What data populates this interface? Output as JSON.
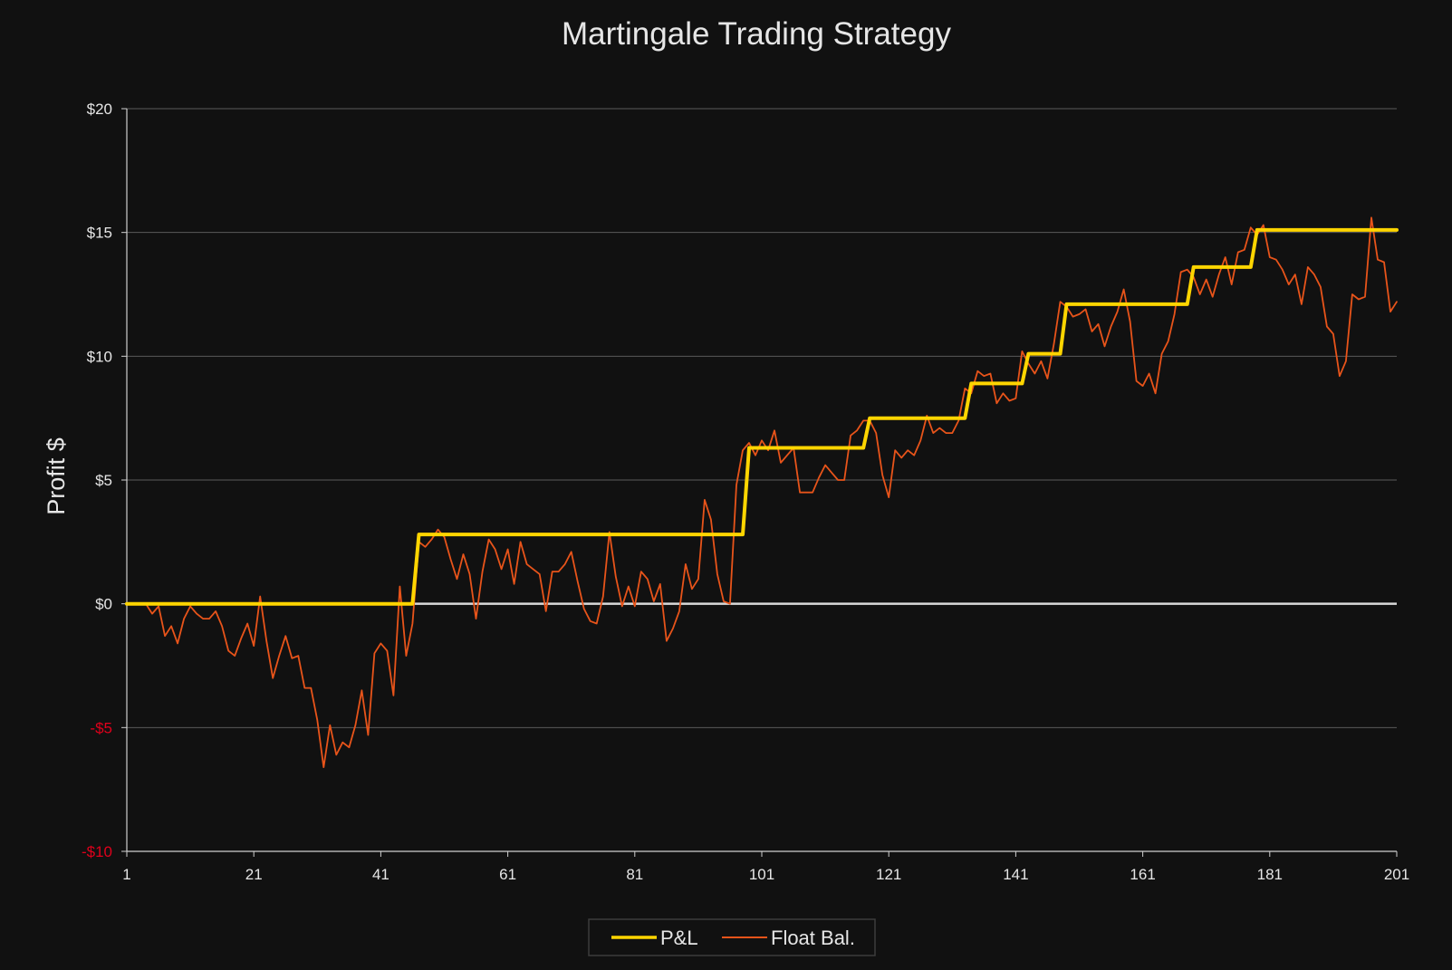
{
  "colors": {
    "background": "#111111",
    "grid": "#5a5a5a",
    "zero_line": "#d9d9d9",
    "axis": "#cfcfcf",
    "text": "#e6e6e6",
    "negative_tick": "#e0001b",
    "pnl": "#ffd500",
    "float": "#e8541a",
    "legend_border": "#3c3c3c"
  },
  "chart_data": {
    "type": "line",
    "title": "Martingale Trading Strategy",
    "ylabel": "Profit $",
    "xlabel": "",
    "xlim": [
      1,
      201
    ],
    "ylim": [
      -10,
      20
    ],
    "x_ticks": [
      1,
      21,
      41,
      61,
      81,
      101,
      121,
      141,
      161,
      181,
      201
    ],
    "y_ticks": [
      {
        "value": 20,
        "label": "$20"
      },
      {
        "value": 15,
        "label": "$15"
      },
      {
        "value": 10,
        "label": "$10"
      },
      {
        "value": 5,
        "label": "$5"
      },
      {
        "value": 0,
        "label": "$0"
      },
      {
        "value": -5,
        "label": "-$5"
      },
      {
        "value": -10,
        "label": "-$10"
      }
    ],
    "grid": true,
    "legend_position": "bottom",
    "series": [
      {
        "name": "P&L",
        "color": "#ffd500",
        "points": [
          [
            1,
            0
          ],
          [
            46,
            0
          ],
          [
            47,
            2.8
          ],
          [
            98,
            2.8
          ],
          [
            99,
            6.3
          ],
          [
            117,
            6.3
          ],
          [
            118,
            7.5
          ],
          [
            133,
            7.5
          ],
          [
            134,
            8.9
          ],
          [
            142,
            8.9
          ],
          [
            143,
            10.1
          ],
          [
            148,
            10.1
          ],
          [
            149,
            12.1
          ],
          [
            168,
            12.1
          ],
          [
            169,
            13.6
          ],
          [
            178,
            13.6
          ],
          [
            179,
            15.1
          ],
          [
            201,
            15.1
          ]
        ]
      },
      {
        "name": "Float Bal.",
        "color": "#e8541a",
        "points": [
          [
            1,
            0
          ],
          [
            4,
            0
          ],
          [
            5,
            -0.4
          ],
          [
            6,
            -0.1
          ],
          [
            7,
            -1.3
          ],
          [
            8,
            -0.9
          ],
          [
            9,
            -1.6
          ],
          [
            10,
            -0.6
          ],
          [
            11,
            -0.1
          ],
          [
            12,
            -0.4
          ],
          [
            13,
            -0.6
          ],
          [
            14,
            -0.6
          ],
          [
            15,
            -0.3
          ],
          [
            16,
            -0.9
          ],
          [
            17,
            -1.9
          ],
          [
            18,
            -2.1
          ],
          [
            19,
            -1.4
          ],
          [
            20,
            -0.8
          ],
          [
            21,
            -1.7
          ],
          [
            22,
            0.3
          ],
          [
            23,
            -1.5
          ],
          [
            24,
            -3.0
          ],
          [
            25,
            -2.1
          ],
          [
            26,
            -1.3
          ],
          [
            27,
            -2.2
          ],
          [
            28,
            -2.1
          ],
          [
            29,
            -3.4
          ],
          [
            30,
            -3.4
          ],
          [
            31,
            -4.7
          ],
          [
            32,
            -6.6
          ],
          [
            33,
            -4.9
          ],
          [
            34,
            -6.1
          ],
          [
            35,
            -5.6
          ],
          [
            36,
            -5.8
          ],
          [
            37,
            -4.9
          ],
          [
            38,
            -3.5
          ],
          [
            39,
            -5.3
          ],
          [
            40,
            -2.0
          ],
          [
            41,
            -1.6
          ],
          [
            42,
            -1.9
          ],
          [
            43,
            -3.7
          ],
          [
            44,
            0.7
          ],
          [
            45,
            -2.1
          ],
          [
            46,
            -0.8
          ],
          [
            47,
            2.5
          ],
          [
            48,
            2.3
          ],
          [
            49,
            2.6
          ],
          [
            50,
            3.0
          ],
          [
            51,
            2.7
          ],
          [
            52,
            1.8
          ],
          [
            53,
            1.0
          ],
          [
            54,
            2.0
          ],
          [
            55,
            1.2
          ],
          [
            56,
            -0.6
          ],
          [
            57,
            1.3
          ],
          [
            58,
            2.6
          ],
          [
            59,
            2.2
          ],
          [
            60,
            1.4
          ],
          [
            61,
            2.2
          ],
          [
            62,
            0.8
          ],
          [
            63,
            2.5
          ],
          [
            64,
            1.6
          ],
          [
            65,
            1.4
          ],
          [
            66,
            1.2
          ],
          [
            67,
            -0.3
          ],
          [
            68,
            1.3
          ],
          [
            69,
            1.3
          ],
          [
            70,
            1.6
          ],
          [
            71,
            2.1
          ],
          [
            72,
            0.9
          ],
          [
            73,
            -0.2
          ],
          [
            74,
            -0.7
          ],
          [
            75,
            -0.8
          ],
          [
            76,
            0.3
          ],
          [
            77,
            2.9
          ],
          [
            78,
            1.1
          ],
          [
            79,
            -0.1
          ],
          [
            80,
            0.7
          ],
          [
            81,
            -0.1
          ],
          [
            82,
            1.3
          ],
          [
            83,
            1.0
          ],
          [
            84,
            0.1
          ],
          [
            85,
            0.8
          ],
          [
            86,
            -1.5
          ],
          [
            87,
            -1.0
          ],
          [
            88,
            -0.3
          ],
          [
            89,
            1.6
          ],
          [
            90,
            0.6
          ],
          [
            91,
            1.0
          ],
          [
            92,
            4.2
          ],
          [
            93,
            3.4
          ],
          [
            94,
            1.2
          ],
          [
            95,
            0.1
          ],
          [
            96,
            0.0
          ],
          [
            97,
            4.8
          ],
          [
            98,
            6.2
          ],
          [
            99,
            6.5
          ],
          [
            100,
            6.0
          ],
          [
            101,
            6.6
          ],
          [
            102,
            6.2
          ],
          [
            103,
            7.0
          ],
          [
            104,
            5.7
          ],
          [
            105,
            6.0
          ],
          [
            106,
            6.3
          ],
          [
            107,
            4.5
          ],
          [
            108,
            4.5
          ],
          [
            109,
            4.5
          ],
          [
            110,
            5.1
          ],
          [
            111,
            5.6
          ],
          [
            112,
            5.3
          ],
          [
            113,
            5.0
          ],
          [
            114,
            5.0
          ],
          [
            115,
            6.8
          ],
          [
            116,
            7.0
          ],
          [
            117,
            7.4
          ],
          [
            118,
            7.4
          ],
          [
            119,
            6.9
          ],
          [
            120,
            5.2
          ],
          [
            121,
            4.3
          ],
          [
            122,
            6.2
          ],
          [
            123,
            5.9
          ],
          [
            124,
            6.2
          ],
          [
            125,
            6.0
          ],
          [
            126,
            6.6
          ],
          [
            127,
            7.6
          ],
          [
            128,
            6.9
          ],
          [
            129,
            7.1
          ],
          [
            130,
            6.9
          ],
          [
            131,
            6.9
          ],
          [
            132,
            7.4
          ],
          [
            133,
            8.7
          ],
          [
            134,
            8.5
          ],
          [
            135,
            9.4
          ],
          [
            136,
            9.2
          ],
          [
            137,
            9.3
          ],
          [
            138,
            8.1
          ],
          [
            139,
            8.5
          ],
          [
            140,
            8.2
          ],
          [
            141,
            8.3
          ],
          [
            142,
            10.2
          ],
          [
            143,
            9.7
          ],
          [
            144,
            9.3
          ],
          [
            145,
            9.8
          ],
          [
            146,
            9.1
          ],
          [
            147,
            10.5
          ],
          [
            148,
            12.2
          ],
          [
            149,
            12.0
          ],
          [
            150,
            11.6
          ],
          [
            151,
            11.7
          ],
          [
            152,
            11.9
          ],
          [
            153,
            11.0
          ],
          [
            154,
            11.3
          ],
          [
            155,
            10.4
          ],
          [
            156,
            11.2
          ],
          [
            157,
            11.8
          ],
          [
            158,
            12.7
          ],
          [
            159,
            11.4
          ],
          [
            160,
            9.0
          ],
          [
            161,
            8.8
          ],
          [
            162,
            9.3
          ],
          [
            163,
            8.5
          ],
          [
            164,
            10.1
          ],
          [
            165,
            10.6
          ],
          [
            166,
            11.7
          ],
          [
            167,
            13.4
          ],
          [
            168,
            13.5
          ],
          [
            169,
            13.2
          ],
          [
            170,
            12.5
          ],
          [
            171,
            13.1
          ],
          [
            172,
            12.4
          ],
          [
            173,
            13.3
          ],
          [
            174,
            14.0
          ],
          [
            175,
            12.9
          ],
          [
            176,
            14.2
          ],
          [
            177,
            14.3
          ],
          [
            178,
            15.2
          ],
          [
            179,
            14.9
          ],
          [
            180,
            15.3
          ],
          [
            181,
            14.0
          ],
          [
            182,
            13.9
          ],
          [
            183,
            13.5
          ],
          [
            184,
            12.9
          ],
          [
            185,
            13.3
          ],
          [
            186,
            12.1
          ],
          [
            187,
            13.6
          ],
          [
            188,
            13.3
          ],
          [
            189,
            12.8
          ],
          [
            190,
            11.2
          ],
          [
            191,
            10.9
          ],
          [
            192,
            9.2
          ],
          [
            193,
            9.8
          ],
          [
            194,
            12.5
          ],
          [
            195,
            12.3
          ],
          [
            196,
            12.4
          ],
          [
            197,
            15.6
          ],
          [
            198,
            13.9
          ],
          [
            199,
            13.8
          ],
          [
            200,
            11.8
          ],
          [
            201,
            12.2
          ]
        ]
      }
    ]
  }
}
